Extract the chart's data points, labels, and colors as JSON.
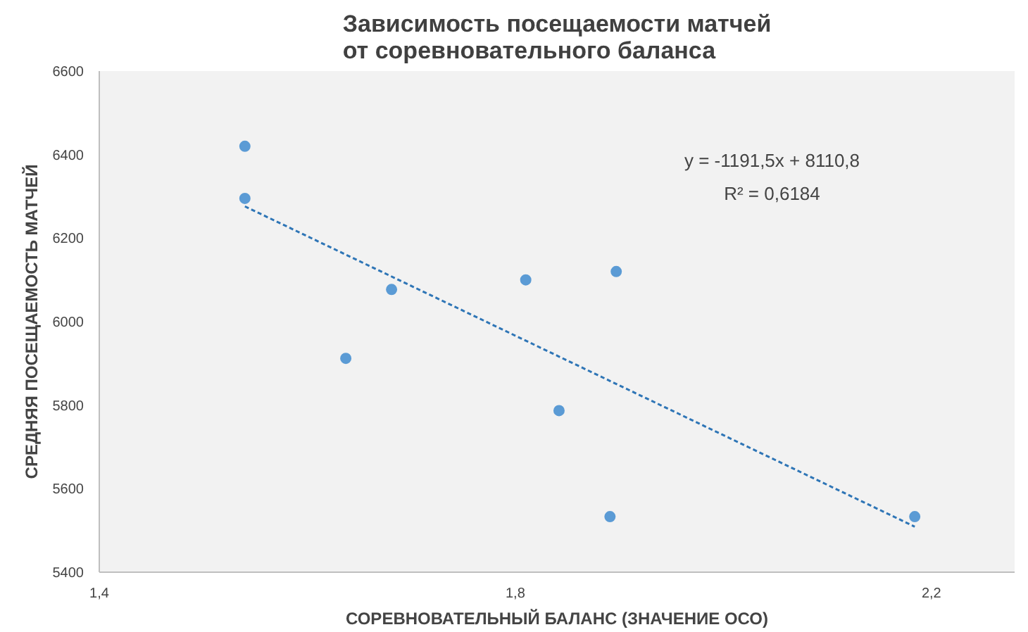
{
  "chart_data": {
    "type": "scatter",
    "title": "Зависимость посещаемости матчей\nот соревновательного баланса",
    "xlabel": "СОРЕВНОВАТЕЛЬНЫЙ БАЛАНС (ЗНАЧЕНИЕ ОСО)",
    "ylabel": "СРЕДНЯЯ ПОСЕЩАЕМОСТЬ МАТЧЕЙ",
    "xlim": [
      1.4,
      2.28
    ],
    "xticks": [
      {
        "value": 1.4,
        "label": "1,4"
      },
      {
        "value": 1.8,
        "label": "1,8"
      },
      {
        "value": 2.2,
        "label": "2,2"
      }
    ],
    "ylim": [
      5400,
      6600
    ],
    "yticks": [
      5400,
      5600,
      5800,
      6000,
      6200,
      6400,
      6600
    ],
    "grid": false,
    "marker": "circle",
    "series": [
      {
        "color": "#5b9bd5",
        "x": [
          1.54,
          1.54,
          1.681,
          1.637,
          1.81,
          1.897,
          1.842,
          1.891,
          2.184
        ],
        "values": [
          6420,
          6295,
          6077,
          5912,
          6100,
          6120,
          5787,
          5533,
          5533
        ]
      },
      {
        "type": "line",
        "color": "#2e75b6",
        "line_style": "dashed",
        "marker": "none",
        "x": [
          1.54,
          2.184
        ],
        "values": [
          6276,
          5509
        ]
      }
    ],
    "annotations": [
      "y = -1191,5x + 8110,8",
      "R² = 0,6184"
    ]
  }
}
